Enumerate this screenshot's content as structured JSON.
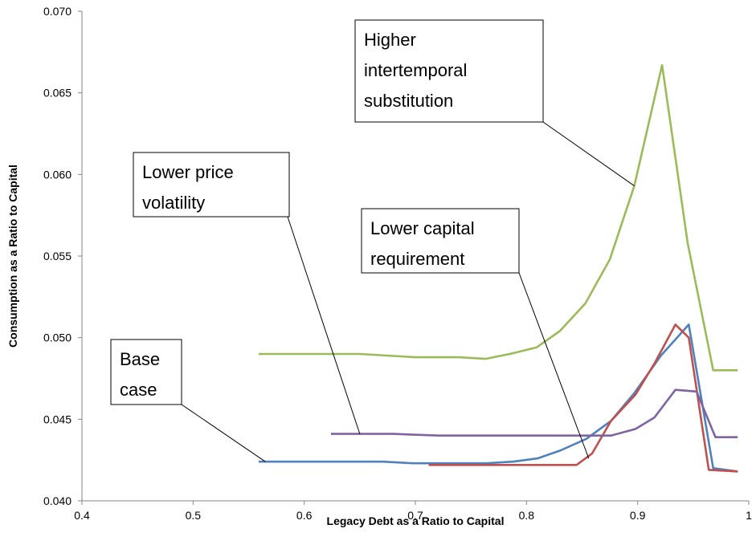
{
  "chart_data": {
    "type": "line",
    "title": "",
    "xlabel": "Legacy Debt as a Ratio to Capital",
    "ylabel": "Consumption as a Ratio to Capital",
    "xlim": [
      0.4,
      1.0
    ],
    "ylim": [
      0.04,
      0.07
    ],
    "x_ticks": [
      "0.4",
      "0.5",
      "0.6",
      "0.7",
      "0.8",
      "0.9",
      "1"
    ],
    "y_ticks": [
      "0.040",
      "0.045",
      "0.050",
      "0.055",
      "0.060",
      "0.065",
      "0.070"
    ],
    "grid": false,
    "series": [
      {
        "color": "#9bbb59",
        "points": [
          [
            0.559,
            0.049
          ],
          [
            0.607,
            0.049
          ],
          [
            0.65,
            0.049
          ],
          [
            0.7,
            0.0488
          ],
          [
            0.739,
            0.0488
          ],
          [
            0.763,
            0.0487
          ],
          [
            0.785,
            0.049
          ],
          [
            0.809,
            0.0494
          ],
          [
            0.83,
            0.0504
          ],
          [
            0.853,
            0.0521
          ],
          [
            0.875,
            0.0548
          ],
          [
            0.897,
            0.0593
          ],
          [
            0.922,
            0.0667
          ],
          [
            0.945,
            0.0558
          ],
          [
            0.968,
            0.048
          ],
          [
            0.99,
            0.048
          ]
        ]
      },
      {
        "color": "#4f81bd",
        "points": [
          [
            0.559,
            0.0424
          ],
          [
            0.619,
            0.0424
          ],
          [
            0.671,
            0.0424
          ],
          [
            0.698,
            0.0423
          ],
          [
            0.742,
            0.0423
          ],
          [
            0.764,
            0.0423
          ],
          [
            0.788,
            0.0424
          ],
          [
            0.81,
            0.0426
          ],
          [
            0.831,
            0.0431
          ],
          [
            0.854,
            0.0438
          ],
          [
            0.876,
            0.0449
          ],
          [
            0.897,
            0.0466
          ],
          [
            0.921,
            0.0489
          ],
          [
            0.946,
            0.0508
          ],
          [
            0.968,
            0.042
          ],
          [
            0.99,
            0.0418
          ]
        ]
      },
      {
        "color": "#c0504d",
        "points": [
          [
            0.712,
            0.0422
          ],
          [
            0.76,
            0.0422
          ],
          [
            0.8,
            0.0422
          ],
          [
            0.845,
            0.0422
          ],
          [
            0.859,
            0.0429
          ],
          [
            0.876,
            0.0449
          ],
          [
            0.898,
            0.0465
          ],
          [
            0.915,
            0.0484
          ],
          [
            0.934,
            0.0508
          ],
          [
            0.946,
            0.05
          ],
          [
            0.964,
            0.0419
          ],
          [
            0.99,
            0.0418
          ]
        ]
      },
      {
        "color": "#8064a2",
        "points": [
          [
            0.624,
            0.0441
          ],
          [
            0.68,
            0.0441
          ],
          [
            0.721,
            0.044
          ],
          [
            0.8,
            0.044
          ],
          [
            0.876,
            0.044
          ],
          [
            0.898,
            0.0444
          ],
          [
            0.915,
            0.0451
          ],
          [
            0.934,
            0.0468
          ],
          [
            0.953,
            0.0467
          ],
          [
            0.97,
            0.0439
          ],
          [
            0.99,
            0.0439
          ]
        ]
      }
    ],
    "annotations": [
      {
        "lines": [
          "Higher",
          "intertemporal",
          "substitution"
        ],
        "target": [
          0.897,
          0.0593
        ]
      },
      {
        "lines": [
          "Lower price",
          "volatility"
        ],
        "target": [
          0.65,
          0.0441
        ]
      },
      {
        "lines": [
          "Lower capital",
          "requirement"
        ],
        "target": [
          0.856,
          0.0426
        ]
      },
      {
        "lines": [
          "Base",
          "case"
        ],
        "target": [
          0.565,
          0.0424
        ]
      }
    ]
  }
}
